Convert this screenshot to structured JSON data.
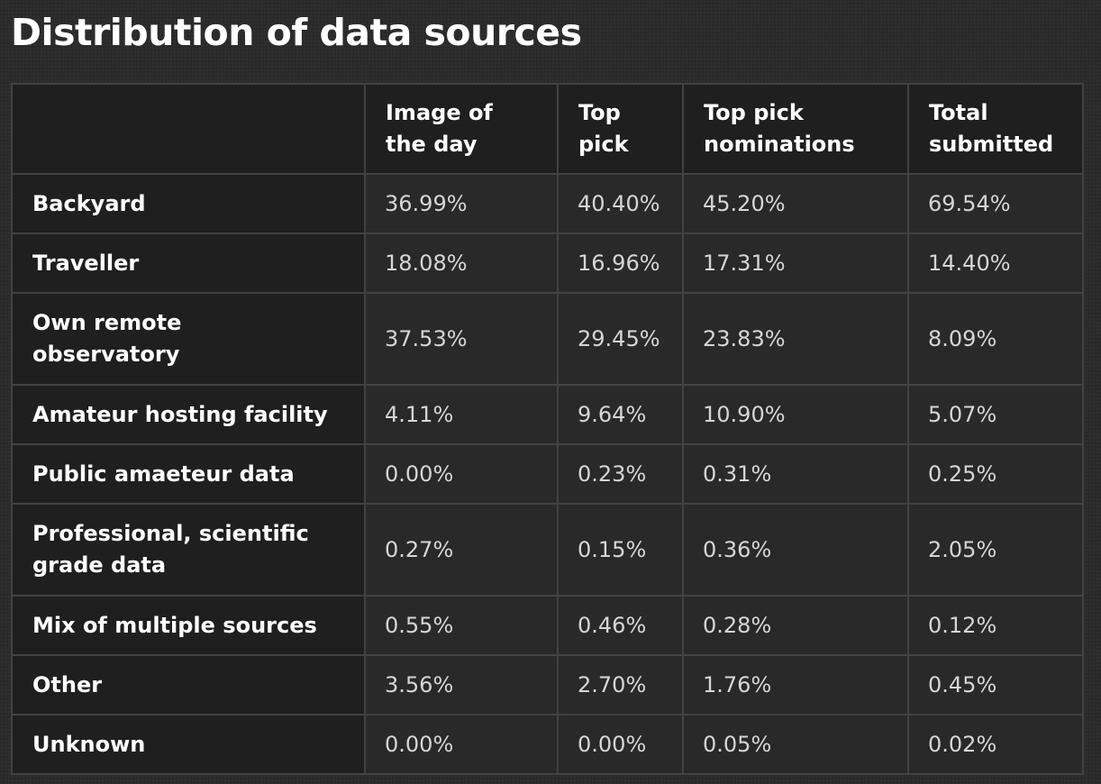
{
  "title": "Distribution of data sources",
  "table": {
    "headers": [
      "",
      "Image of the day",
      "Top pick",
      "Top pick nominations",
      "Total submitted"
    ],
    "rows": [
      {
        "label": "Backyard",
        "values": [
          "36.99%",
          "40.40%",
          "45.20%",
          "69.54%"
        ]
      },
      {
        "label": "Traveller",
        "values": [
          "18.08%",
          "16.96%",
          "17.31%",
          "14.40%"
        ]
      },
      {
        "label": "Own remote observatory",
        "values": [
          "37.53%",
          "29.45%",
          "23.83%",
          "8.09%"
        ]
      },
      {
        "label": "Amateur hosting facility",
        "values": [
          "4.11%",
          "9.64%",
          "10.90%",
          "5.07%"
        ]
      },
      {
        "label": "Public amaeteur data",
        "values": [
          "0.00%",
          "0.23%",
          "0.31%",
          "0.25%"
        ]
      },
      {
        "label": "Professional, scientific grade data",
        "values": [
          "0.27%",
          "0.15%",
          "0.36%",
          "2.05%"
        ]
      },
      {
        "label": "Mix of multiple sources",
        "values": [
          "0.55%",
          "0.46%",
          "0.28%",
          "0.12%"
        ]
      },
      {
        "label": "Other",
        "values": [
          "3.56%",
          "2.70%",
          "1.76%",
          "0.45%"
        ]
      },
      {
        "label": "Unknown",
        "values": [
          "0.00%",
          "0.00%",
          "0.05%",
          "0.02%"
        ]
      }
    ]
  }
}
